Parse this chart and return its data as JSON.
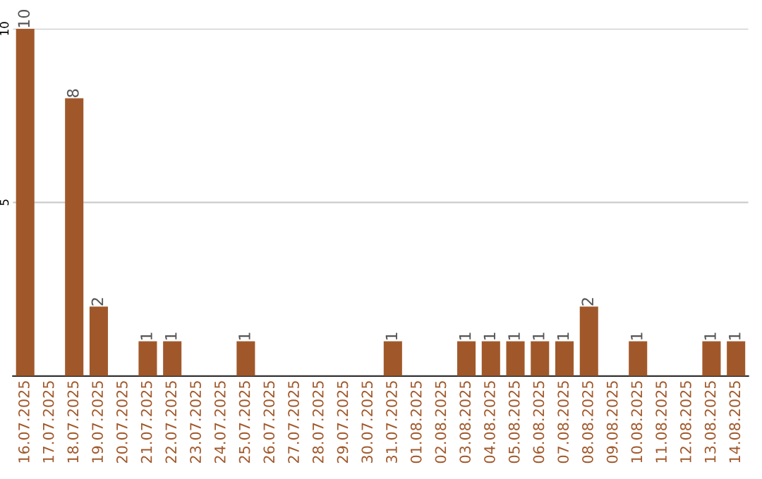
{
  "chart_data": {
    "type": "bar",
    "categories": [
      "16.07.2025",
      "17.07.2025",
      "18.07.2025",
      "19.07.2025",
      "20.07.2025",
      "21.07.2025",
      "22.07.2025",
      "23.07.2025",
      "24.07.2025",
      "25.07.2025",
      "26.07.2025",
      "27.07.2025",
      "28.07.2025",
      "29.07.2025",
      "30.07.2025",
      "31.07.2025",
      "01.08.2025",
      "02.08.2025",
      "03.08.2025",
      "04.08.2025",
      "05.08.2025",
      "06.08.2025",
      "07.08.2025",
      "08.08.2025",
      "09.08.2025",
      "10.08.2025",
      "11.08.2025",
      "12.08.2025",
      "13.08.2025",
      "14.08.2025"
    ],
    "values": [
      10,
      0,
      8,
      2,
      0,
      1,
      1,
      0,
      0,
      1,
      0,
      0,
      0,
      0,
      0,
      1,
      0,
      0,
      1,
      1,
      1,
      1,
      1,
      2,
      0,
      1,
      0,
      0,
      1,
      1
    ],
    "value_labels": [
      "10",
      null,
      "8",
      "2",
      null,
      "1",
      "1",
      null,
      null,
      "1",
      null,
      null,
      null,
      null,
      null,
      "1",
      null,
      null,
      "1",
      "1",
      "1",
      "1",
      "1",
      "2",
      null,
      "1",
      null,
      null,
      "1",
      "1"
    ],
    "color": "#a0582a",
    "ylim": [
      0,
      10
    ],
    "yticks": [
      5,
      10
    ],
    "grid": "y",
    "legend": false
  }
}
